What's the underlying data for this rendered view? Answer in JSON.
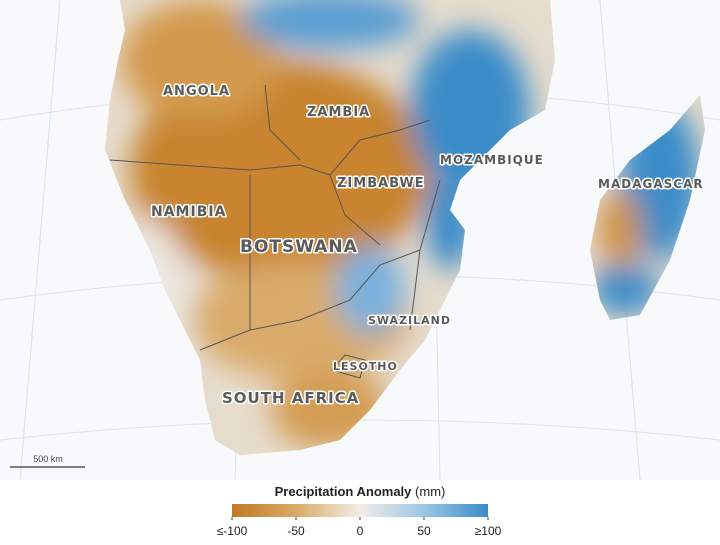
{
  "map": {
    "labels": [
      "ANGOLA",
      "ZAMBIA",
      "MOZAMBIQUE",
      "MADAGASCAR",
      "ZIMBABWE",
      "NAMIBIA",
      "BOTSWANA",
      "SWAZILAND",
      "LESOTHO",
      "SOUTH AFRICA"
    ],
    "scale_bar": "500 km"
  },
  "legend": {
    "title": "Precipitation Anomaly",
    "unit": "(mm)",
    "lim": [
      -100,
      100
    ],
    "ticks": [
      {
        "value": -100,
        "label": "≤-100"
      },
      -50,
      0,
      50,
      {
        "value": 100,
        "label": "≥100"
      }
    ],
    "colors": [
      "#c07a22",
      "#d9ab66",
      "#f2ede6",
      "#9cc6e4",
      "#3a8cc9"
    ]
  }
}
